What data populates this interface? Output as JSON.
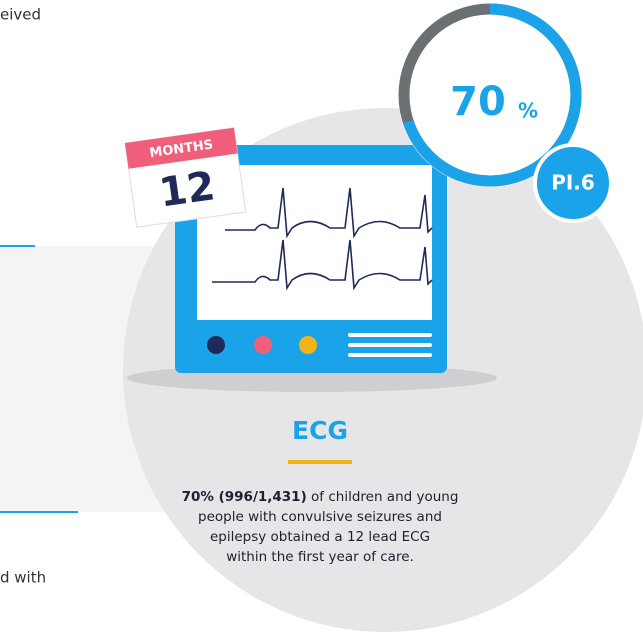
{
  "fragments": {
    "top": "eived",
    "bottom": "d with"
  },
  "gauge": {
    "value": 70,
    "unit": "%",
    "max": 100,
    "badge": "PI.6"
  },
  "calendar": {
    "header": "MONTHS",
    "number": "12"
  },
  "title": "ECG",
  "description": {
    "bold": "70% (996/1,431)",
    "lines": [
      " of children and young",
      "people with convulsive seizures and",
      "epilepsy obtained a 12 lead ECG",
      "within the first year of care."
    ]
  }
}
